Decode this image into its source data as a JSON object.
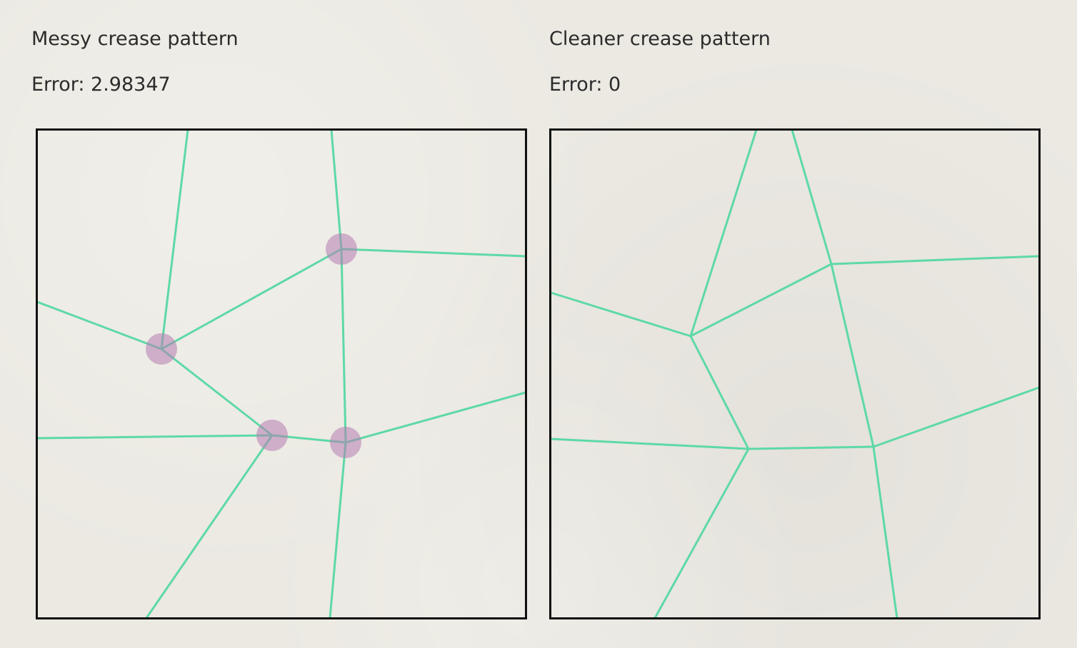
{
  "panels": {
    "messy": {
      "title": "Messy crease pattern",
      "error": "Error: 2.98347"
    },
    "clean": {
      "title": "Cleaner crease pattern",
      "error": "Error: 0"
    }
  },
  "colors": {
    "crease": "#5ed9a6",
    "border": "#111111",
    "error_marker": "#b57bb0"
  }
}
